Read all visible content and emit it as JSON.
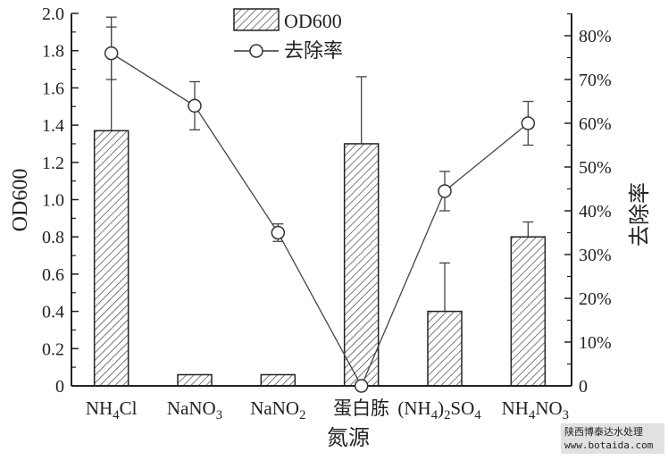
{
  "chart_data": {
    "type": "bar",
    "xlabel": "氮源",
    "ylabel": "OD600",
    "ylabel_right": "去除率",
    "categories": [
      "NH4Cl",
      "NaNO3",
      "NaNO2",
      "蛋白胨",
      "(NH4)2SO4",
      "NH4NO3"
    ],
    "ylim": [
      0,
      2.0
    ],
    "yticks": [
      "0",
      "0.2",
      "0.4",
      "0.6",
      "0.8",
      "1.0",
      "1.2",
      "1.4",
      "1.6",
      "1.8",
      "2.0"
    ],
    "ylim_right": [
      0,
      85
    ],
    "yticks_right": [
      "0",
      "10%",
      "20%",
      "30%",
      "40%",
      "50%",
      "60%",
      "70%",
      "80%"
    ],
    "legend_position": "top-center",
    "series": [
      {
        "name": "OD600",
        "type": "bar",
        "values": [
          1.37,
          0.06,
          0.06,
          1.3,
          0.4,
          0.8
        ],
        "error_upper": [
          0.61,
          0,
          0,
          0.36,
          0.26,
          0.08
        ],
        "pattern": "hatched",
        "axis": "left"
      },
      {
        "name": "去除率",
        "type": "line",
        "marker": "open-circle",
        "values": [
          76,
          64,
          35,
          0,
          44.5,
          60
        ],
        "error": [
          6,
          5.5,
          2,
          0,
          4.5,
          5
        ],
        "axis": "right",
        "unit": "%"
      }
    ]
  },
  "watermark": {
    "line1": "陕西博泰达水处理",
    "line2": "www.botaida.com"
  }
}
